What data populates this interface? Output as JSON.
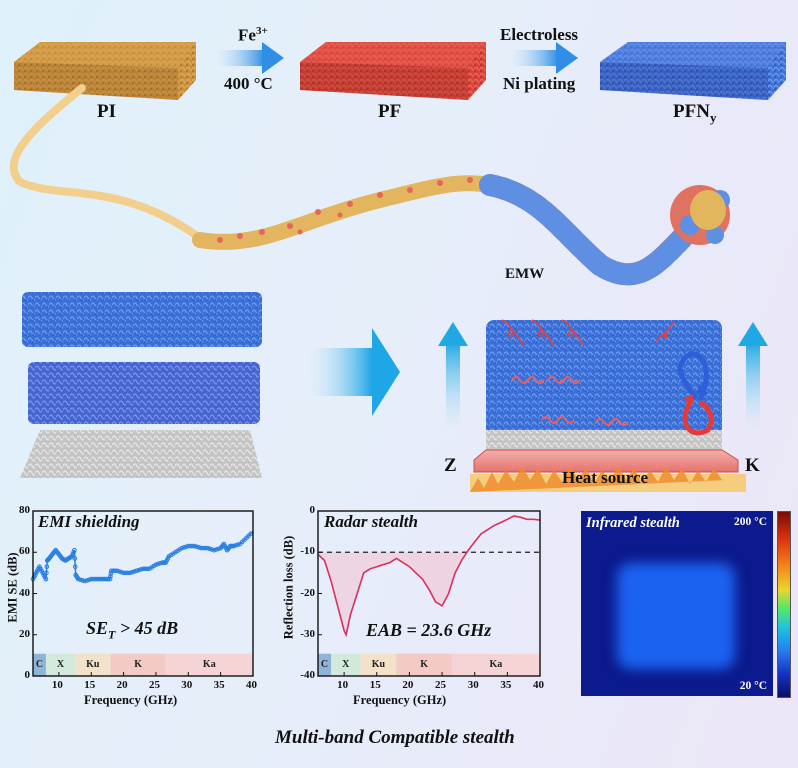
{
  "synthesis": {
    "materials": [
      {
        "label": "PI",
        "color": "#c98d3d"
      },
      {
        "label": "PF",
        "color": "#d9453a"
      },
      {
        "label": "PFN",
        "subscript": "y",
        "color": "#3f6fd6"
      }
    ],
    "steps": [
      {
        "above": "Fe",
        "above_sup": "3+",
        "below": "400 °C"
      },
      {
        "above": "Electroless",
        "below": "Ni plating"
      }
    ]
  },
  "mechanism": {
    "emw_label": "EMW",
    "z_label": "Z",
    "k_label": "K",
    "heat_label": "Heat source"
  },
  "bands": [
    {
      "name": "C",
      "start": 6,
      "end": 8,
      "color": "#7fa9cf"
    },
    {
      "name": "X",
      "start": 8,
      "end": 12.5,
      "color": "#cfe7d6"
    },
    {
      "name": "Ku",
      "start": 12.5,
      "end": 18,
      "color": "#f4dfc0"
    },
    {
      "name": "K",
      "start": 18,
      "end": 26.5,
      "color": "#f5c4bd"
    },
    {
      "name": "Ka",
      "start": 26.5,
      "end": 40,
      "color": "#f8cfcf"
    }
  ],
  "chart_data": [
    {
      "type": "line",
      "title": "EMI shielding",
      "annotation": "SE",
      "annotation_sub": "T",
      "annotation_rest": " > 45 dB",
      "xlabel": "Frequency (GHz)",
      "ylabel": "EMI SE (dB)",
      "xlim": [
        6,
        40
      ],
      "ylim": [
        0,
        80
      ],
      "xticks": [
        10,
        15,
        20,
        25,
        30,
        35,
        40
      ],
      "yticks": [
        0,
        20,
        40,
        60,
        80
      ],
      "color": "#2a7fe0",
      "x": [
        6,
        6.5,
        7,
        7.5,
        8,
        8.2,
        8.5,
        9,
        9.5,
        10,
        10.5,
        11,
        11.5,
        12,
        12.4,
        12.6,
        13,
        14,
        15,
        16,
        17,
        17.9,
        18.1,
        19,
        20,
        21,
        22,
        23,
        24,
        25,
        26,
        26.5,
        27,
        28,
        29,
        30,
        31,
        32,
        33,
        34,
        35,
        35.5,
        36,
        36.5,
        37,
        38,
        39,
        40
      ],
      "values": [
        47,
        50,
        53,
        50,
        47,
        56,
        57,
        59,
        61,
        59,
        57,
        56,
        57,
        58,
        61,
        49,
        47,
        46,
        47,
        47,
        47,
        47,
        51,
        51,
        50,
        50,
        51,
        52,
        52,
        54,
        55,
        55,
        58,
        60,
        62,
        63,
        63,
        62,
        62,
        61,
        62,
        64,
        61,
        63,
        63,
        64,
        67,
        70
      ]
    },
    {
      "type": "line",
      "title": "Radar stealth",
      "annotation": "EAB = 23.6 GHz",
      "xlabel": "Frequency (GHz)",
      "ylabel": "Reflection loss (dB)",
      "xlim": [
        6,
        40
      ],
      "ylim": [
        -40,
        0
      ],
      "xticks": [
        10,
        15,
        20,
        25,
        30,
        35,
        40
      ],
      "yticks": [
        0,
        -10,
        -20,
        -30,
        -40
      ],
      "threshold": -10,
      "color": "#d8315b",
      "x": [
        6,
        7,
        8,
        9,
        10,
        10.3,
        11,
        12,
        13,
        14,
        15,
        16,
        17,
        18,
        19,
        20,
        21,
        22,
        23,
        24,
        25,
        26,
        27,
        28,
        29,
        30,
        31,
        32,
        33,
        34,
        35,
        36,
        37,
        38,
        39,
        40
      ],
      "values": [
        -10.5,
        -12,
        -17,
        -23,
        -29,
        -30,
        -25,
        -20,
        -15,
        -14,
        -13.5,
        -13,
        -12.5,
        -11.5,
        -12.5,
        -13.5,
        -15,
        -16.5,
        -19,
        -22,
        -23,
        -20,
        -15,
        -12,
        -9.5,
        -7.5,
        -5.5,
        -4.5,
        -3.5,
        -2.8,
        -2,
        -1.2,
        -1.5,
        -2,
        -2,
        -2.2
      ]
    }
  ],
  "infrared": {
    "title": "Infrared stealth",
    "max_label": "200 °C",
    "min_label": "20 °C"
  },
  "caption": "Multi-band Compatible stealth"
}
